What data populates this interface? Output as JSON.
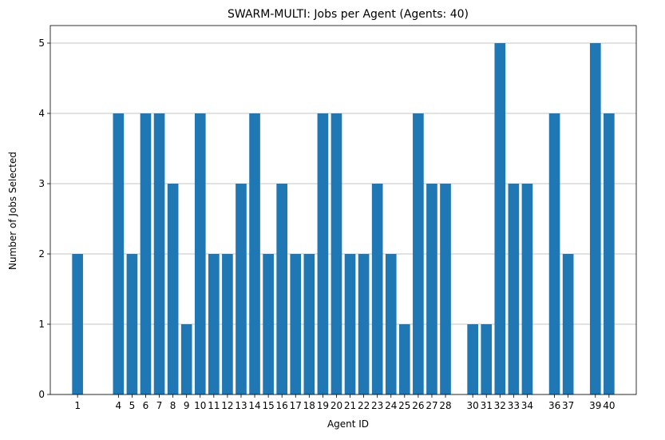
{
  "chart_data": {
    "type": "bar",
    "title": "SWARM-MULTI: Jobs per Agent (Agents: 40)",
    "xlabel": "Agent ID",
    "ylabel": "Number of Jobs Selected",
    "categories": [
      "1",
      "4",
      "5",
      "6",
      "7",
      "8",
      "9",
      "10",
      "11",
      "12",
      "13",
      "14",
      "15",
      "16",
      "17",
      "18",
      "19",
      "20",
      "21",
      "22",
      "23",
      "24",
      "25",
      "26",
      "27",
      "28",
      "30",
      "31",
      "32",
      "33",
      "34",
      "36",
      "37",
      "39",
      "40"
    ],
    "values": [
      2,
      4,
      2,
      4,
      4,
      3,
      1,
      4,
      2,
      2,
      3,
      4,
      2,
      3,
      2,
      2,
      4,
      4,
      2,
      2,
      3,
      2,
      1,
      4,
      3,
      3,
      1,
      1,
      5,
      3,
      3,
      4,
      2,
      5,
      4
    ],
    "ylim": [
      0,
      5.25
    ],
    "yticks": [
      0,
      1,
      2,
      3,
      4,
      5
    ],
    "grid": "y-axis only",
    "bar_color": "#1f77b4",
    "grid_color": "#b0b0b0"
  }
}
